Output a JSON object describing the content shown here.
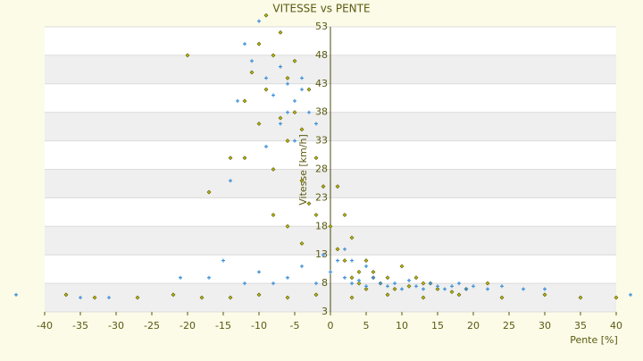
{
  "chart_data": {
    "type": "scatter",
    "title": "VITESSE vs PENTE",
    "x_label": "Pente [%]",
    "y_label": "Vitesse [km/h]",
    "xlim": [
      -40,
      40
    ],
    "xticks": [
      -40,
      -35,
      -30,
      -25,
      -20,
      -15,
      -10,
      -5,
      0,
      5,
      10,
      15,
      20,
      25,
      30,
      35,
      40
    ],
    "ylim": [
      3,
      53
    ],
    "yticks": [
      3,
      8,
      13,
      18,
      23,
      28,
      33,
      38,
      43,
      48,
      53
    ],
    "grid": true,
    "series": [
      {
        "color": "#b8b800",
        "x": [
          -37,
          -33,
          -27,
          -22,
          -18,
          -14,
          -10,
          -6,
          -2,
          3,
          8,
          13,
          18,
          24,
          30,
          35,
          40,
          -12,
          -11,
          -10,
          -9,
          -8,
          -7,
          -6,
          -5,
          -4,
          -3,
          -12,
          -10,
          -8,
          -6,
          -4,
          -2,
          -9,
          -7,
          -5,
          -3,
          -1,
          -8,
          -6,
          -4,
          -2,
          0,
          1,
          2,
          3,
          4,
          5,
          1,
          2,
          3,
          4,
          6,
          5,
          7,
          9,
          11,
          13,
          15,
          17,
          19,
          22,
          6,
          8,
          10,
          12,
          14,
          -17,
          -20,
          -14
        ],
        "values": [
          6,
          5.5,
          5.5,
          6,
          5.5,
          5.5,
          6,
          5.5,
          6,
          5.5,
          6,
          5.5,
          6,
          5.5,
          6,
          5.5,
          5.5,
          40,
          45,
          50,
          55,
          48,
          52,
          44,
          38,
          35,
          42,
          30,
          36,
          28,
          33,
          26,
          30,
          42,
          37,
          47,
          22,
          25,
          20,
          18,
          15,
          20,
          18,
          14,
          12,
          16,
          10,
          12,
          25,
          20,
          9,
          8,
          9,
          7,
          8,
          7,
          7.5,
          8,
          7,
          6.5,
          7,
          8,
          10,
          9,
          11,
          9,
          8,
          24,
          48,
          30
        ]
      },
      {
        "color": "#3a8fd8",
        "x": [
          -44,
          -35,
          -31,
          -21,
          -17,
          -15,
          -13,
          -12,
          -11,
          -10,
          -9,
          -8,
          -7,
          -6,
          -5,
          -4,
          -3,
          -7,
          -5,
          -9,
          -6,
          -4,
          -2,
          -14,
          -12,
          -10,
          -8,
          -6,
          -4,
          -2,
          0,
          1,
          2,
          3,
          4,
          5,
          6,
          7,
          8,
          9,
          10,
          11,
          12,
          13,
          14,
          15,
          16,
          17,
          18,
          19,
          20,
          22,
          24,
          27,
          30,
          42,
          -1,
          3,
          2,
          5
        ],
        "values": [
          6,
          5.5,
          5.5,
          9,
          9,
          12,
          40,
          50,
          47,
          54,
          44,
          41,
          46,
          43,
          40,
          44,
          38,
          36,
          33,
          32,
          38,
          42,
          36,
          26,
          8,
          10,
          8,
          9,
          11,
          8,
          10,
          12,
          9,
          8,
          8.5,
          7.5,
          9,
          8,
          7.5,
          8,
          7,
          8.5,
          7.5,
          7,
          8,
          7.5,
          7,
          7.5,
          8,
          7,
          7.5,
          7,
          7.5,
          7,
          7,
          6,
          13,
          12,
          14,
          11
        ]
      }
    ]
  }
}
